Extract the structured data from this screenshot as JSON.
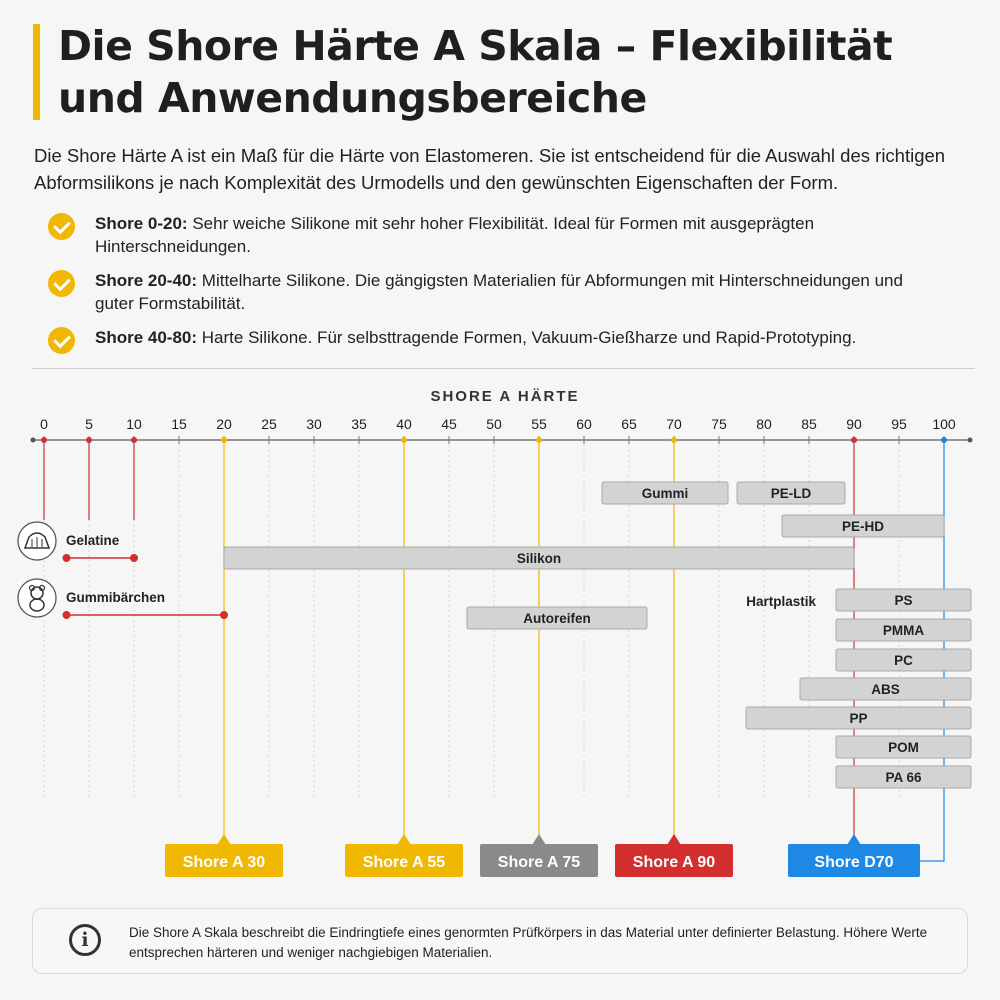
{
  "title": "Die Shore Härte A Skala – Flexibilität und Anwendungsbereiche",
  "intro": "Die Shore Härte A ist ein Maß für die Härte von Elastomeren. Sie ist entscheidend für die Auswahl des richtigen Abformsilikons je nach Komplexität des Urmodells und den gewünschten Eigenschaften der Form.",
  "bullets": [
    {
      "term": "Shore 0-20:",
      "text": "Sehr weiche Silikone mit sehr hoher Flexibilität. Ideal für Formen mit ausgeprägten Hinterschneidungen."
    },
    {
      "term": "Shore 20-40:",
      "text": "Mittelharte Silikone. Die gängigsten Materialien für Abformungen mit Hinterschneidungen und guter Formstabilität."
    },
    {
      "term": "Shore 40-80:",
      "text": "Harte Silikone. Für selbsttragende Formen, Vakuum-Gießharze und Rapid-Prototyping."
    }
  ],
  "info": "Die Shore A Skala beschreibt die Eindringtiefe eines genormten Prüfkörpers in das Material unter definierter Belastung. Höhere Werte entsprechen härteren und weniger nachgiebigen Materialien.",
  "chart_data": {
    "type": "bar",
    "orientation": "horizontal-range",
    "title": "SHORE A HÄRTE",
    "xlim": [
      0,
      100
    ],
    "xticks": [
      0,
      5,
      10,
      15,
      20,
      25,
      30,
      35,
      40,
      45,
      50,
      55,
      60,
      65,
      70,
      75,
      80,
      85,
      90,
      95,
      100
    ],
    "grid": true,
    "range_bars": [
      {
        "label": "Gummi",
        "start": 62,
        "end": 76
      },
      {
        "label": "PE-LD",
        "start": 77,
        "end": 89
      },
      {
        "label": "PE-HD",
        "start": 82,
        "end": 100
      },
      {
        "label": "Silikon",
        "start": 20,
        "end": 90
      },
      {
        "label": "Autoreifen",
        "start": 47,
        "end": 67
      },
      {
        "label": "PS",
        "start": 88,
        "end": 103
      },
      {
        "label": "PMMA",
        "start": 88,
        "end": 103
      },
      {
        "label": "PC",
        "start": 88,
        "end": 103
      },
      {
        "label": "ABS",
        "start": 84,
        "end": 103
      },
      {
        "label": "PP",
        "start": 78,
        "end": 103
      },
      {
        "label": "POM",
        "start": 88,
        "end": 103
      },
      {
        "label": "PA 66",
        "start": 88,
        "end": 103
      }
    ],
    "dumbbells": [
      {
        "label": "Gelatine",
        "icon": "jelly-mold-icon",
        "start": 2.5,
        "end": 10
      },
      {
        "label": "Gummibärchen",
        "icon": "teddy-bear-icon",
        "start": 2.5,
        "end": 20
      }
    ],
    "group_label": "Hartplastik",
    "reference_lines": [
      {
        "value": 0,
        "color": "#d32f2f"
      },
      {
        "value": 5,
        "color": "#d32f2f"
      },
      {
        "value": 10,
        "color": "#d32f2f"
      },
      {
        "value": 20,
        "color": "#f0b800"
      },
      {
        "value": 40,
        "color": "#f0b800"
      },
      {
        "value": 55,
        "color": "#f0b800"
      },
      {
        "value": 70,
        "color": "#f0b800"
      },
      {
        "value": 90,
        "color": "#d32f2f"
      },
      {
        "value": 100,
        "color": "#1e88e5"
      }
    ],
    "markers": [
      {
        "label": "Shore A 30",
        "value": 20,
        "color": "#f0b800"
      },
      {
        "label": "Shore A 55",
        "value": 40,
        "color": "#f0b800"
      },
      {
        "label": "Shore A 75",
        "value": 55,
        "color": "#8a8a8a"
      },
      {
        "label": "Shore A 90",
        "value": 70,
        "color": "#d32f2f"
      },
      {
        "label": "Shore D70",
        "value": 90,
        "color": "#1e88e5"
      }
    ]
  }
}
